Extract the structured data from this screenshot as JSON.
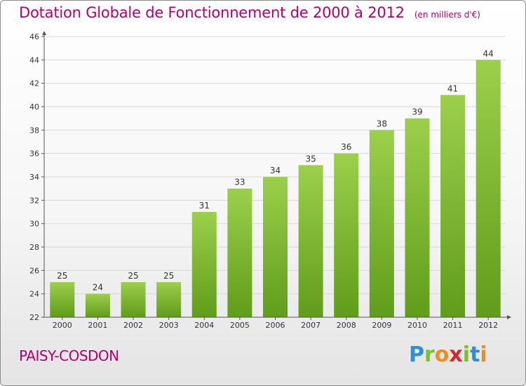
{
  "title": {
    "main": "Dotation Globale de Fonctionnement de 2000 à 2012",
    "unit": "(en milliers d'€)"
  },
  "commune": "PAISY-COSDON",
  "logo": {
    "letters": [
      "P",
      "r",
      "o",
      "x",
      "i",
      "t",
      "i"
    ],
    "colors": [
      "#2f8fd1",
      "#7cbf2c",
      "#f28c1e",
      "#d7262f",
      "#7cbf2c",
      "#2f8fd1",
      "#f28c1e"
    ]
  },
  "colors": {
    "title": "#b5006e",
    "bar_top": "#9ccf4c",
    "bar_bottom": "#5f9d1a",
    "axis": "#555555",
    "grid": "#d8d8d8"
  },
  "chart_data": {
    "type": "bar",
    "title": "Dotation Globale de Fonctionnement de 2000 à 2012",
    "subtitle": "(en milliers d'€)",
    "xlabel": "",
    "ylabel": "",
    "categories": [
      "2000",
      "2001",
      "2002",
      "2003",
      "2004",
      "2005",
      "2006",
      "2007",
      "2008",
      "2009",
      "2010",
      "2011",
      "2012"
    ],
    "values": [
      25,
      24,
      25,
      25,
      31,
      33,
      34,
      35,
      36,
      38,
      39,
      41,
      44
    ],
    "ylim": [
      22,
      46
    ],
    "yticks": [
      22,
      24,
      26,
      28,
      30,
      32,
      34,
      36,
      38,
      40,
      42,
      44,
      46
    ],
    "grid": true,
    "legend": "none"
  }
}
